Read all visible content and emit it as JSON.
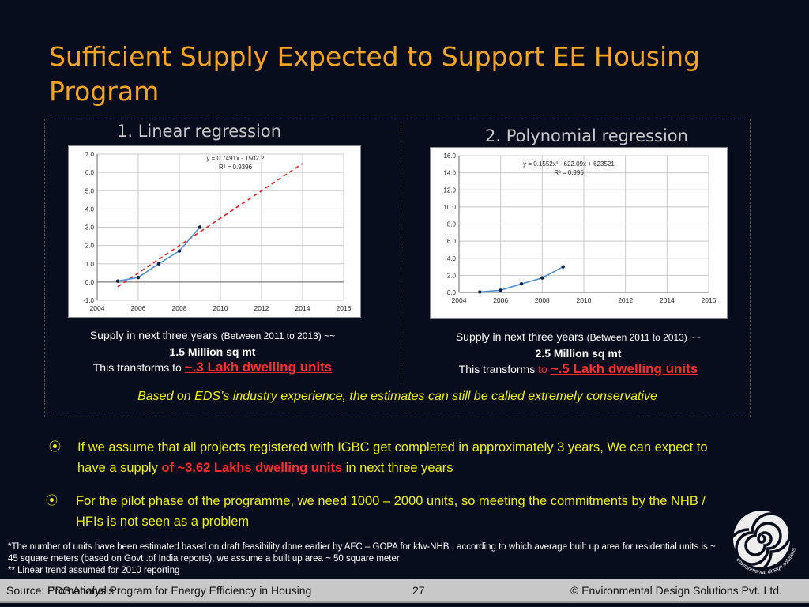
{
  "slide": {
    "title": "Sufficient Supply Expected to Support EE Housing Program"
  },
  "left_panel": {
    "heading": "1. Linear regression",
    "caption_line1": "Supply in next three years ",
    "caption_line1_small": "(Between 2011 to 2013) ~~",
    "caption_line2": "1.5 Million sq mt",
    "caption_line3_prefix": "This transforms to ",
    "caption_line3_highlight": "~.3 Lakh dwelling units"
  },
  "right_panel": {
    "heading": "2. Polynomial regression",
    "caption_line1": "Supply in next three years ",
    "caption_line1_small": "(Between 2011 to 2013) ~~",
    "caption_line2": "2.5 Million sq mt",
    "caption_line3_prefix": "This transforms ",
    "caption_line3_to": "to ",
    "caption_line3_highlight": "~.5 Lakh dwelling units"
  },
  "note": "Based on EDS’s industry experience, the estimates can still be called extremely conservative",
  "bullets": [
    {
      "icon": "circle-dot-icon",
      "prefix": "If we assume that all projects registered with IGBC get completed in approximately 3 years, We can expect to have a supply ",
      "highlight": "of ~3.62 Lakhs dwelling units",
      "suffix": " in next three years"
    },
    {
      "icon": "circle-dot-icon",
      "text": "For the pilot phase of the programme, we need 1000 – 2000 units, so meeting the commitments by the NHB / HFIs is not seen as a problem"
    }
  ],
  "footnotes": {
    "line1": "*The number of units have been estimated based on draft feasibility done earlier by AFC – GOPA for kfw-NHB , according to which average built up area for residential units is ~ 45 square meters (based on Govt .of India reports), we assume a built up area ~ 50 square meter",
    "line2": "** Linear trend assumed for 2010 reporting"
  },
  "footer": {
    "source": "Source: EDS Analysis",
    "program": "Promotional Program for Energy Efficiency in Housing",
    "page": "27",
    "copyright": "© Environmental Design Solutions Pvt. Ltd."
  },
  "logo": {
    "text": "environmental design solutions"
  },
  "chart_data": [
    {
      "type": "line",
      "title": "",
      "x_ticks": [
        "2004",
        "2006",
        "2008",
        "2010",
        "2012",
        "2014",
        "2016"
      ],
      "y_ticks": [
        "-1.0",
        "0.0",
        "1.0",
        "2.0",
        "3.0",
        "4.0",
        "5.0",
        "6.0",
        "7.0"
      ],
      "xlim": [
        2004,
        2016
      ],
      "ylim": [
        -1,
        7
      ],
      "series": [
        {
          "points": [
            [
              2005,
              0.05
            ],
            [
              2006,
              0.25
            ],
            [
              2007,
              1.0
            ],
            [
              2008,
              1.7
            ],
            [
              2009,
              3.0
            ]
          ],
          "color": "#4a90d9"
        }
      ],
      "trendline": {
        "kind": "linear",
        "equation": "y = 0.7491x - 1502.2",
        "r2": "R² = 0.9396",
        "x_range": [
          2005,
          2014
        ],
        "color": "#e02020",
        "slope": 0.7491,
        "intercept": -1502.2
      }
    },
    {
      "type": "line",
      "title": "",
      "x_ticks": [
        "2004",
        "2006",
        "2008",
        "2010",
        "2012",
        "2014",
        "2016"
      ],
      "y_ticks": [
        "0.0",
        "2.0",
        "4.0",
        "6.0",
        "8.0",
        "10.0",
        "12.0",
        "14.0",
        "16.0"
      ],
      "xlim": [
        2004,
        2016
      ],
      "ylim": [
        0,
        16
      ],
      "series": [
        {
          "points": [
            [
              2005,
              0.05
            ],
            [
              2006,
              0.25
            ],
            [
              2007,
              1.0
            ],
            [
              2008,
              1.7
            ],
            [
              2009,
              3.0
            ]
          ],
          "color": "#4a90d9"
        }
      ],
      "trendline": {
        "kind": "polynomial",
        "equation": "y = 0.1552x² - 622.09x + 623521",
        "r2": "R² = 0.996",
        "x_range": [
          2005,
          2014
        ],
        "color": "#e02020",
        "a": 0.1552,
        "b": -622.09,
        "c": 623521
      }
    }
  ]
}
